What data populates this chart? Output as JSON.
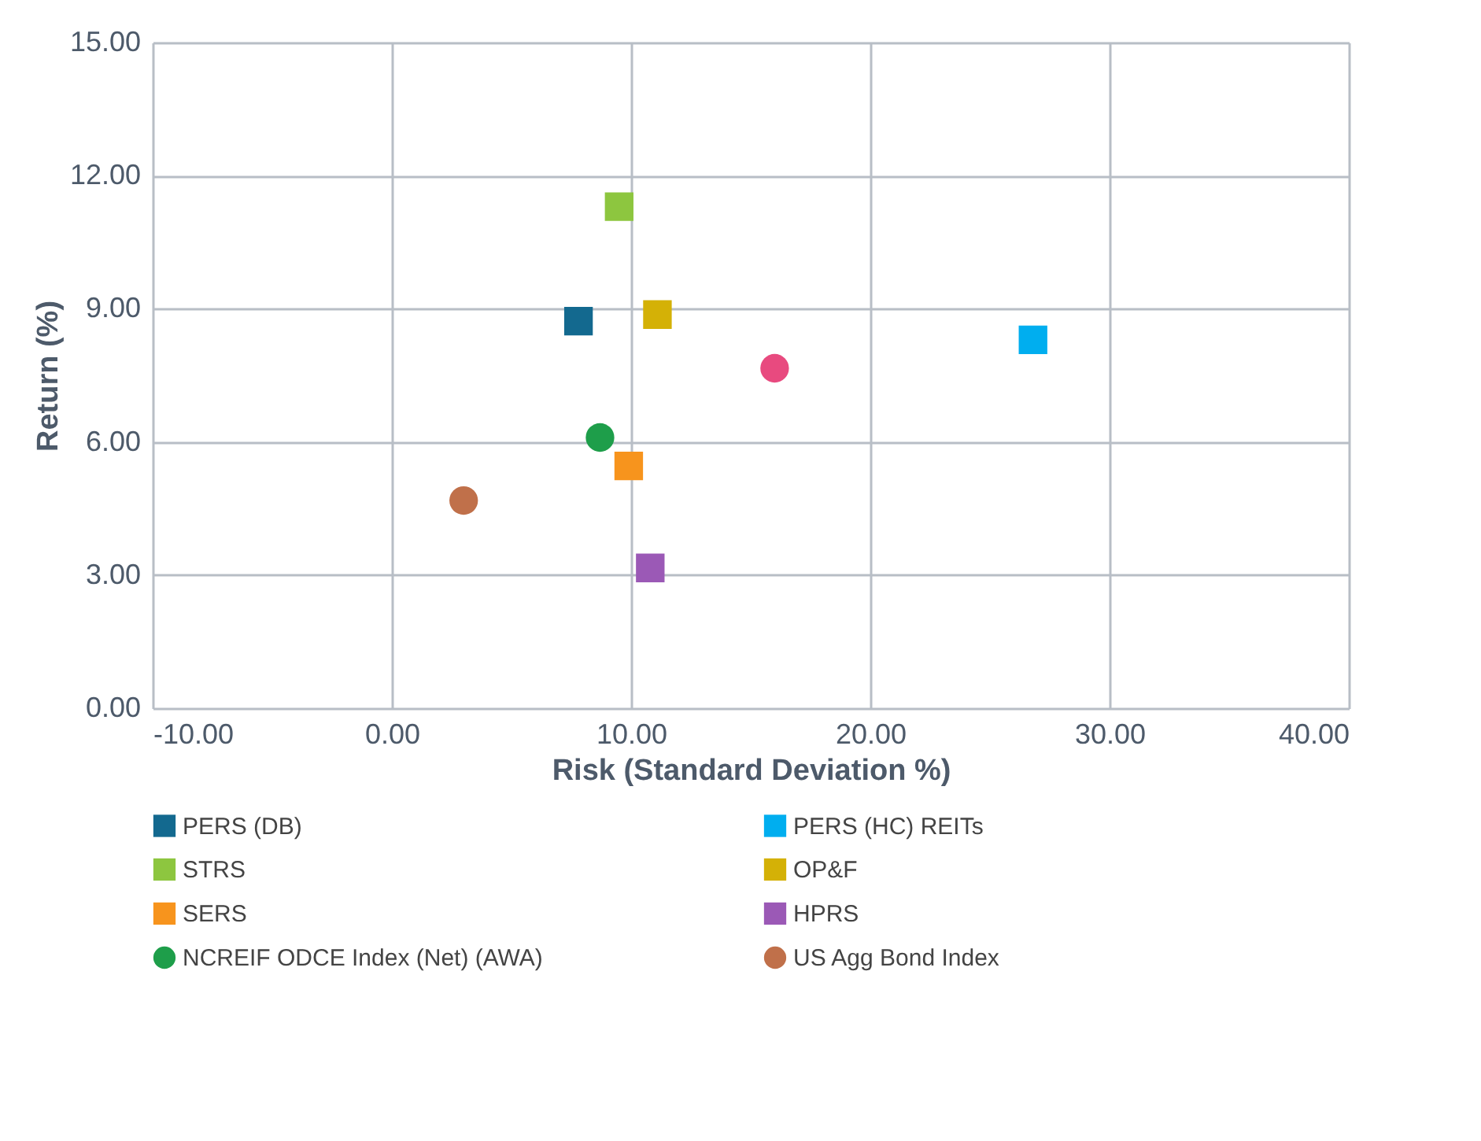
{
  "chart_data": {
    "type": "scatter",
    "xlabel": "Risk (Standard Deviation %)",
    "ylabel": "Return (%)",
    "xlim": [
      -10,
      40
    ],
    "xticks": [
      {
        "value": -10,
        "label": "-10.00"
      },
      {
        "value": 0,
        "label": "0.00"
      },
      {
        "value": 10,
        "label": "10.00"
      },
      {
        "value": 20,
        "label": "20.00"
      },
      {
        "value": 30,
        "label": "30.00"
      },
      {
        "value": 40,
        "label": "40.00"
      }
    ],
    "ylim": [
      0,
      15
    ],
    "yticks": [
      {
        "value": 0,
        "label": "0.00"
      },
      {
        "value": 3,
        "label": "3.00"
      },
      {
        "value": 6,
        "label": "6.00"
      },
      {
        "value": 9,
        "label": "9.00"
      },
      {
        "value": 12,
        "label": "12.00"
      },
      {
        "value": 15,
        "label": "15.00"
      }
    ],
    "grid": true,
    "legend": "bottom",
    "series": [
      {
        "name": "PERS (DB)",
        "color": "#13698f",
        "marker": "square",
        "x": [
          7.8
        ],
        "values": [
          8.72
        ]
      },
      {
        "name": "PERS (HC) REITs",
        "color": "#00aeef",
        "marker": "square",
        "x": [
          26.8
        ],
        "values": [
          8.3
        ]
      },
      {
        "name": "STRS",
        "color": "#8dc63f",
        "marker": "square",
        "x": [
          9.5
        ],
        "values": [
          11.3
        ]
      },
      {
        "name": "OP&F",
        "color": "#d4b106",
        "marker": "square",
        "x": [
          11.1
        ],
        "values": [
          8.87
        ]
      },
      {
        "name": "SERS",
        "color": "#f7941d",
        "marker": "square",
        "x": [
          9.9
        ],
        "values": [
          5.46
        ]
      },
      {
        "name": "HPRS",
        "color": "#9b59b6",
        "marker": "square",
        "x": [
          10.8
        ],
        "values": [
          3.16
        ]
      },
      {
        "name": "NCREIF ODCE Index (Net) (AWA)",
        "color": "#1e9e4a",
        "marker": "circle",
        "x": [
          8.7
        ],
        "values": [
          6.1
        ]
      },
      {
        "color": "#e84a7f",
        "marker": "circle",
        "x": [
          16.0
        ],
        "values": [
          7.66
        ]
      },
      {
        "name": "US Agg Bond Index",
        "color": "#c0704a",
        "marker": "circle",
        "x": [
          3.0
        ],
        "values": [
          4.68
        ]
      }
    ]
  }
}
